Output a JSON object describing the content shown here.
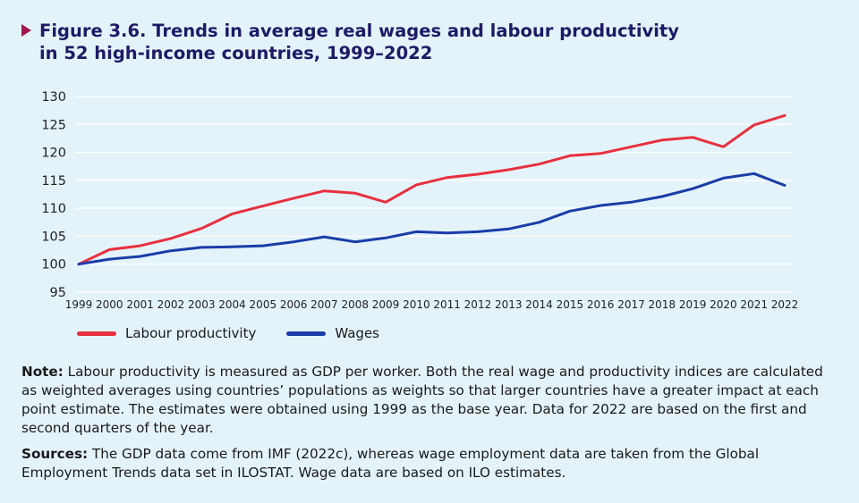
{
  "title": {
    "line1": "Figure 3.6.  Trends in average real wages and labour productivity",
    "line2": "in 52 high-income countries, 1999–2022"
  },
  "colors": {
    "title": "#1f1a66",
    "marker": "#a0174a",
    "background": "#e4f3fa"
  },
  "chart_data": {
    "type": "line",
    "title": "Figure 3.6.  Trends in average real wages and labour productivity in 52 high-income countries, 1999–2022",
    "xlabel": "",
    "ylabel": "",
    "ylim": [
      95,
      130
    ],
    "yticks": [
      95,
      100,
      105,
      110,
      115,
      120,
      125,
      130
    ],
    "grid": true,
    "legend_position": "bottom-left",
    "x": [
      "1999",
      "2000",
      "2001",
      "2002",
      "2003",
      "2004",
      "2005",
      "2006",
      "2007",
      "2008",
      "2009",
      "2010",
      "2011",
      "2012",
      "2013",
      "2014",
      "2015",
      "2016",
      "2017",
      "2018",
      "2019",
      "2020",
      "2021",
      "2022"
    ],
    "series": [
      {
        "name": "Labour productivity",
        "color": "#e8303e",
        "values": [
          100,
          102.6,
          103.3,
          104.6,
          106.4,
          109.0,
          110.4,
          111.8,
          113.1,
          112.7,
          111.1,
          114.2,
          115.5,
          116.1,
          116.9,
          117.9,
          119.4,
          119.8,
          121.0,
          122.2,
          122.7,
          121.0,
          124.9,
          126.6
        ]
      },
      {
        "name": "Wages",
        "color": "#1a3da8",
        "values": [
          100,
          100.9,
          101.4,
          102.4,
          103.0,
          103.1,
          103.3,
          104.0,
          104.9,
          104.0,
          104.7,
          105.8,
          105.6,
          105.8,
          106.3,
          107.5,
          109.5,
          110.5,
          111.1,
          112.1,
          113.5,
          115.4,
          116.2,
          114.1
        ]
      }
    ]
  },
  "legend": [
    {
      "label": "Labour productivity",
      "color": "#e8303e"
    },
    {
      "label": "Wages",
      "color": "#1a3da8"
    }
  ],
  "note": {
    "label": "Note:",
    "text": " Labour productivity is measured as GDP per worker. Both the real wage and productivity indices are calculated as weighted averages using countries’ populations as weights so that larger countries have a greater impact at each point estimate. The estimates were obtained using 1999 as the base year. Data for 2022 are based on the first and second quarters of the year."
  },
  "sources": {
    "label": "Sources:",
    "text": " The GDP data come from IMF (2022c), whereas wage employment data are taken from the Global Employment Trends data set in ILOSTAT. Wage data are based on ILO estimates."
  }
}
